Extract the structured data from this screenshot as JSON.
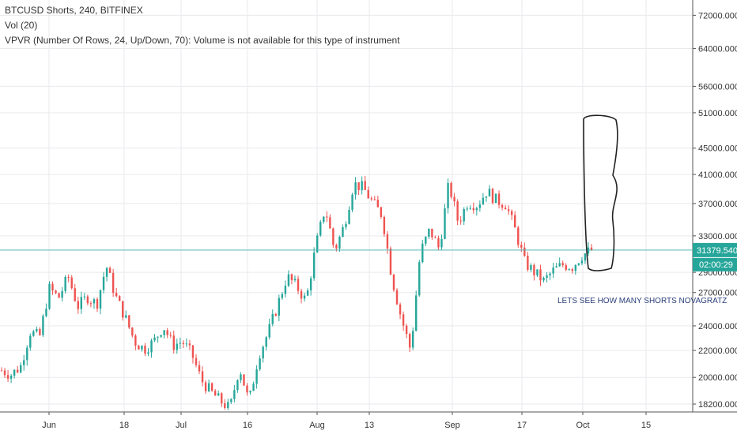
{
  "legend": {
    "line1": "BTCUSD Shorts, 240, BITFINEX",
    "line2": "Vol (20)",
    "line3": "VPVR (Number Of Rows, 24, Up/Down, 70): Volume is not available for this type of instrument"
  },
  "price_tag": "31379.5405",
  "time_tag": "02:00:29",
  "annotation": "LETS SEE HOW MANY SHORTS NOVAGRATZ",
  "colors": {
    "up": "#26a69a",
    "down": "#ef5350",
    "grid": "#e8eaed",
    "crosshair": "#4fb3b3",
    "tag_bg": "#26a69a",
    "drawing": "#222222",
    "annotation": "#2a3f7a"
  },
  "chart_data": {
    "type": "candlestick",
    "symbol": "BTCUSD Shorts",
    "interval": "240",
    "exchange": "BITFINEX",
    "y_scale": "log",
    "ylim": [
      17700,
      76000
    ],
    "y_ticks": [
      "72000.0000",
      "64000.0000",
      "56000.0000",
      "51000.0000",
      "45000.0000",
      "41000.0000",
      "37000.0000",
      "33000.0000",
      "29000.0000",
      "27000.0000",
      "24000.0000",
      "22000.0000",
      "20000.0000",
      "18200.0000"
    ],
    "x_ticks": [
      "Jun",
      "18",
      "Jul",
      "16",
      "Aug",
      "13",
      "Sep",
      "17",
      "Oct",
      "15"
    ],
    "grid": true,
    "last_value": 31379.5405,
    "price_path": [
      [
        "Jun",
        20500
      ],
      [
        "",
        20200
      ],
      [
        "",
        20800
      ],
      [
        "",
        23500
      ],
      [
        "",
        23100
      ],
      [
        "",
        27400
      ],
      [
        "",
        26500
      ],
      [
        "",
        28600
      ],
      [
        "",
        25700
      ],
      [
        "",
        26600
      ],
      [
        "",
        25900
      ],
      [
        "",
        29700
      ],
      [
        "",
        26600
      ],
      [
        "",
        24700
      ],
      [
        "",
        22700
      ],
      [
        "",
        22100
      ],
      [
        "",
        22700
      ],
      [
        "",
        24000
      ],
      [
        "",
        22400
      ],
      [
        "",
        22700
      ],
      [
        "",
        21700
      ],
      [
        "",
        19800
      ],
      [
        "",
        19000
      ],
      [
        "",
        18400
      ],
      [
        "",
        17900
      ],
      [
        "Aug",
        20800
      ],
      [
        "",
        18300
      ],
      [
        "",
        21600
      ],
      [
        "",
        23400
      ],
      [
        "",
        25800
      ],
      [
        "",
        28600
      ],
      [
        "",
        27600
      ],
      [
        "",
        26200
      ],
      [
        "",
        31700
      ],
      [
        "",
        36500
      ],
      [
        "",
        31300
      ],
      [
        "",
        34200
      ],
      [
        "",
        39700
      ],
      [
        "",
        39100
      ],
      [
        "",
        37100
      ],
      [
        "",
        35500
      ],
      [
        "",
        28600
      ],
      [
        "",
        24700
      ],
      [
        "",
        22000
      ],
      [
        "Sep",
        31100
      ],
      [
        "",
        33700
      ],
      [
        "",
        31500
      ],
      [
        "",
        39700
      ],
      [
        "",
        34600
      ],
      [
        "",
        37200
      ],
      [
        "",
        36800
      ],
      [
        "",
        38700
      ],
      [
        "",
        37400
      ],
      [
        "",
        36900
      ],
      [
        "",
        33600
      ],
      [
        "",
        30000
      ],
      [
        "",
        29000
      ],
      [
        "",
        28100
      ],
      [
        "",
        29200
      ],
      [
        "",
        29800
      ],
      [
        "",
        29600
      ],
      [
        "",
        30800
      ],
      [
        "Oct",
        31379.5405
      ]
    ]
  }
}
